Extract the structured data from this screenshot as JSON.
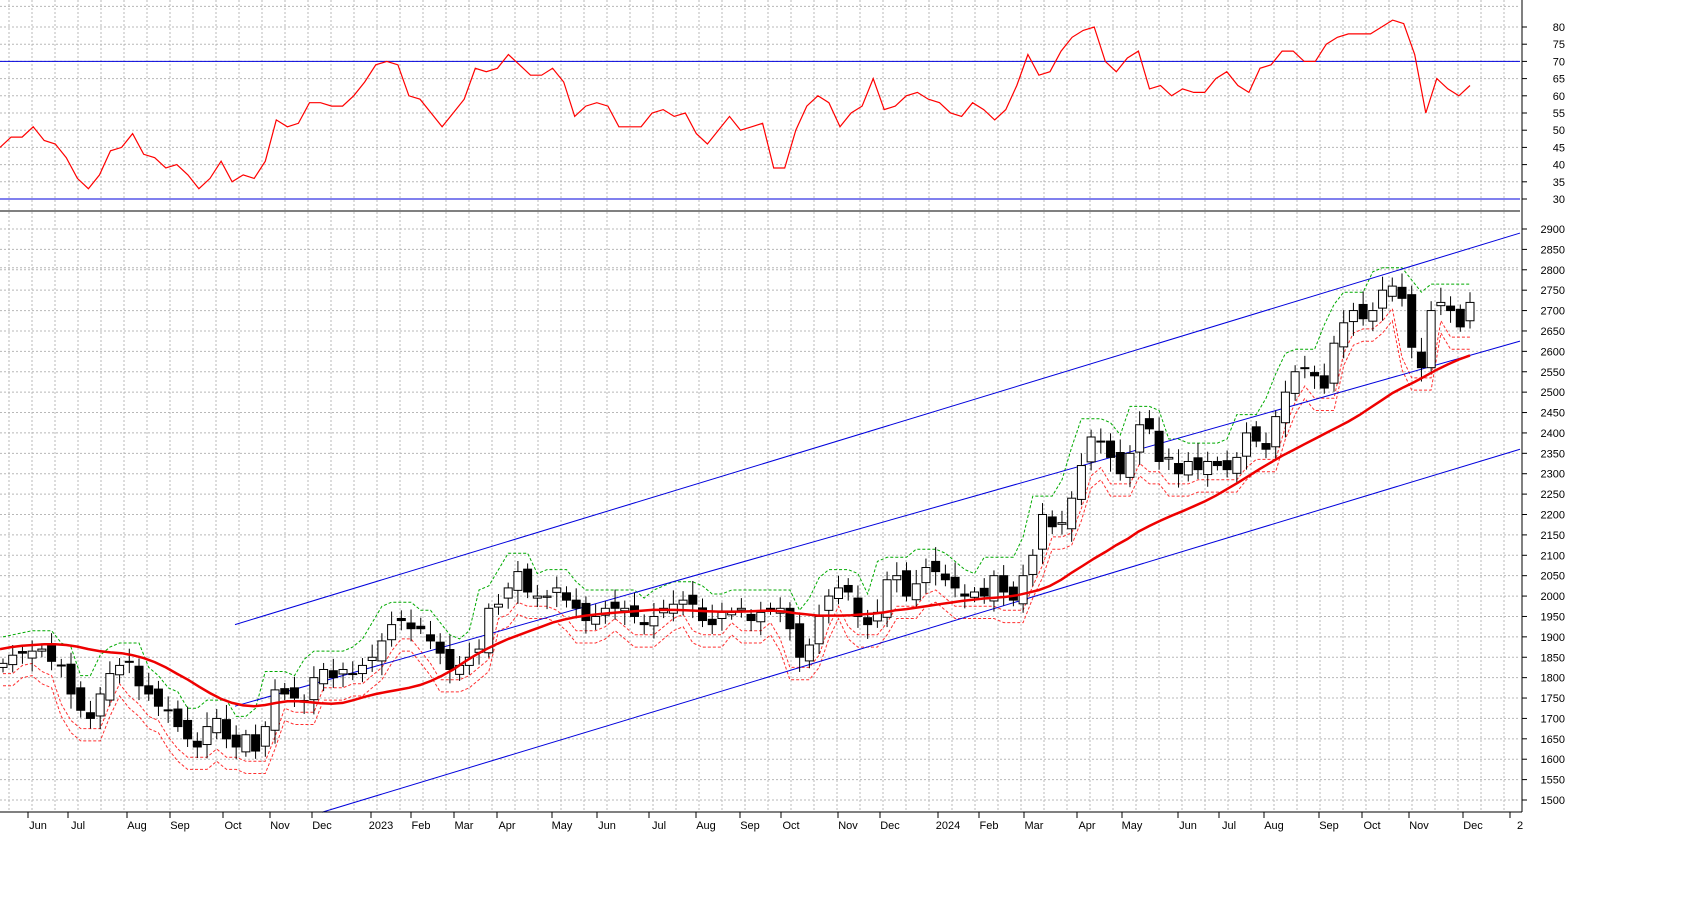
{
  "chart_data": [
    {
      "type": "line",
      "title": "",
      "panel": "rsi-oscillator",
      "ylim": [
        25,
        85
      ],
      "y_ticks": [
        30,
        35,
        40,
        45,
        50,
        55,
        60,
        65,
        70,
        75,
        80
      ],
      "reference_lines": [
        70,
        30
      ],
      "grid": true,
      "series": [
        {
          "color": "#ff0000",
          "values": [
            45,
            48,
            48,
            51,
            47,
            46,
            42,
            36,
            33,
            37,
            44,
            45,
            49,
            43,
            42,
            39,
            40,
            37,
            33,
            36,
            41,
            35,
            37,
            36,
            41,
            53,
            51,
            52,
            58,
            58,
            57,
            57,
            60,
            64,
            69,
            70,
            69,
            60,
            59,
            55,
            51,
            55,
            59,
            68,
            67,
            68,
            72,
            69,
            66,
            66,
            68,
            64,
            54,
            57,
            58,
            57,
            51,
            51,
            51,
            55,
            56,
            54,
            55,
            49,
            46,
            50,
            54,
            50,
            51,
            52,
            39,
            39,
            50,
            57,
            60,
            58,
            51,
            55,
            57,
            65,
            56,
            57,
            60,
            61,
            59,
            58,
            55,
            54,
            58,
            56,
            53,
            56,
            63,
            72,
            66,
            67,
            73,
            77,
            79,
            80,
            70,
            67,
            71,
            73,
            62,
            63,
            60,
            62,
            61,
            61,
            65,
            67,
            63,
            61,
            68,
            69,
            73,
            73,
            70,
            70,
            75,
            77,
            78,
            78,
            78,
            80,
            82,
            81,
            72,
            55,
            65,
            62,
            60,
            63
          ]
        }
      ]
    },
    {
      "type": "candlestick",
      "title": "",
      "panel": "price",
      "ylim": [
        1480,
        2920
      ],
      "y_ticks": [
        1500,
        1550,
        1600,
        1650,
        1700,
        1750,
        1800,
        1850,
        1900,
        1950,
        2000,
        2050,
        2100,
        2150,
        2200,
        2250,
        2300,
        2350,
        2400,
        2450,
        2500,
        2550,
        2600,
        2650,
        2700,
        2750,
        2800,
        2850,
        2900
      ],
      "x_tick_labels": [
        "Jun",
        "Jul",
        "Aug",
        "Sep",
        "Oct",
        "Nov",
        "Dec",
        "2023",
        "Feb",
        "Mar",
        "Apr",
        "May",
        "Jun",
        "Jul",
        "Aug",
        "Sep",
        "Oct",
        "Nov",
        "Dec",
        "2024",
        "Feb",
        "Mar",
        "Apr",
        "May",
        "Jun",
        "Jul",
        "Aug",
        "Sep",
        "Oct",
        "Nov",
        "Dec",
        "2"
      ],
      "grid": true,
      "close": [
        1835,
        1855,
        1860,
        1865,
        1870,
        1840,
        1830,
        1760,
        1720,
        1700,
        1760,
        1810,
        1830,
        1840,
        1780,
        1760,
        1730,
        1720,
        1680,
        1650,
        1630,
        1680,
        1700,
        1650,
        1630,
        1660,
        1620,
        1680,
        1770,
        1760,
        1750,
        1740,
        1800,
        1820,
        1800,
        1820,
        1810,
        1830,
        1850,
        1890,
        1930,
        1940,
        1920,
        1920,
        1890,
        1860,
        1820,
        1830,
        1850,
        1870,
        1970,
        1980,
        2020,
        2060,
        2010,
        2000,
        2000,
        2020,
        1990,
        1970,
        1940,
        1950,
        1970,
        1970,
        1970,
        1950,
        1930,
        1950,
        1970,
        1980,
        1990,
        1980,
        1940,
        1930,
        1960,
        1960,
        1970,
        1940,
        1960,
        1970,
        1970,
        1920,
        1850,
        1880,
        1950,
        2000,
        2020,
        2010,
        1950,
        1930,
        1960,
        2040,
        2050,
        2000,
        2030,
        2070,
        2060,
        2040,
        2020,
        2000,
        2010,
        2000,
        2050,
        2010,
        1990,
        2050,
        2100,
        2200,
        2170,
        2180,
        2240,
        2320,
        2390,
        2380,
        2340,
        2300,
        2350,
        2420,
        2410,
        2330,
        2340,
        2300,
        2330,
        2310,
        2330,
        2320,
        2310,
        2340,
        2400,
        2380,
        2360,
        2440,
        2500,
        2550,
        2560,
        2540,
        2510,
        2620,
        2670,
        2700,
        2680,
        2700,
        2750,
        2760,
        2730,
        2610,
        2560,
        2700,
        2720,
        2700,
        2660,
        2720
      ],
      "series": [
        {
          "name": "",
          "color": "#ee0000",
          "style": "solid-thick",
          "values": [
            1870,
            1875,
            1878,
            1880,
            1882,
            1882,
            1880,
            1876,
            1870,
            1865,
            1862,
            1860,
            1855,
            1848,
            1838,
            1825,
            1810,
            1795,
            1778,
            1762,
            1748,
            1738,
            1732,
            1730,
            1733,
            1738,
            1742,
            1742,
            1740,
            1737,
            1736,
            1738,
            1745,
            1753,
            1760,
            1765,
            1770,
            1775,
            1782,
            1792,
            1805,
            1820,
            1838,
            1855,
            1870,
            1883,
            1895,
            1905,
            1915,
            1925,
            1935,
            1942,
            1948,
            1952,
            1955,
            1958,
            1960,
            1962,
            1964,
            1966,
            1966,
            1966,
            1965,
            1964,
            1963,
            1962,
            1962,
            1962,
            1963,
            1964,
            1964,
            1962,
            1958,
            1955,
            1952,
            1952,
            1952,
            1953,
            1955,
            1957,
            1960,
            1965,
            1968,
            1972,
            1976,
            1980,
            1984,
            1988,
            1991,
            1994,
            1996,
            1998,
            2002,
            2008,
            2015,
            2025,
            2040,
            2058,
            2075,
            2092,
            2108,
            2125,
            2140,
            2158,
            2172,
            2185,
            2197,
            2208,
            2220,
            2232,
            2246,
            2262,
            2278,
            2295,
            2312,
            2328,
            2344,
            2358,
            2372,
            2386,
            2400,
            2414,
            2428,
            2444,
            2462,
            2480,
            2498,
            2512,
            2525,
            2540,
            2555,
            2568,
            2580,
            2590
          ]
        }
      ],
      "trend_lines": [
        {
          "from": [
            "Oct 2022",
            1930
          ],
          "to": [
            "Dec 2024",
            2890
          ]
        },
        {
          "from": [
            "Oct 2022",
            1730
          ],
          "to": [
            "Dec 2024",
            2625
          ]
        },
        {
          "from": [
            "Dec 2022",
            1470
          ],
          "to": [
            "Dec 2024",
            2360
          ]
        }
      ]
    }
  ]
}
